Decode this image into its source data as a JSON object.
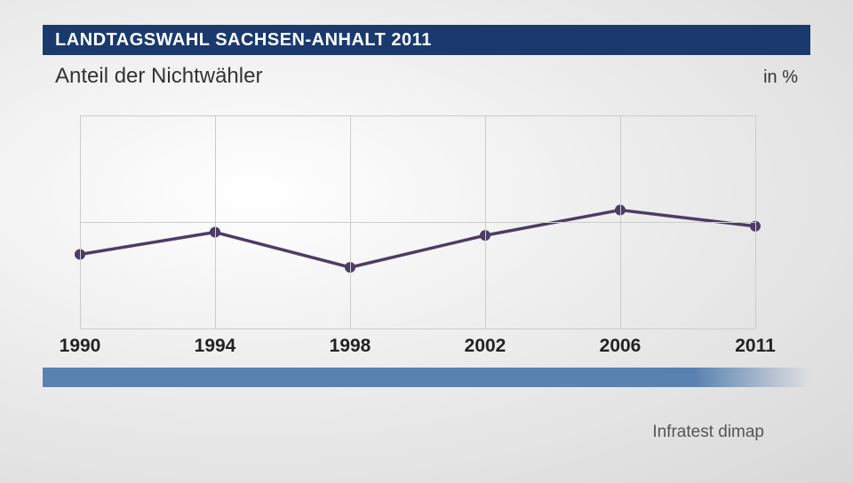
{
  "header": {
    "title": "LANDTAGSWAHL SACHSEN-ANHALT 2011",
    "bg_color": "#1a3a6e",
    "text_color": "#ffffff"
  },
  "subtitle": "Anteil der Nichtwähler",
  "unit": "in %",
  "chart": {
    "type": "line",
    "x_labels": [
      "1990",
      "1994",
      "1998",
      "2002",
      "2006",
      "2011"
    ],
    "y_values": [
      34.8,
      45.2,
      28.7,
      43.7,
      55.6,
      48.0
    ],
    "ymin": 0,
    "ymax": 100,
    "grid_y": [
      0,
      50,
      100
    ],
    "line_color": "#4d3c66",
    "line_width": 3.5,
    "marker_radius": 6,
    "marker_color": "#4d3c66",
    "grid_color": "#cccccc"
  },
  "bottom_bar_color": "#5a82b0",
  "source": "Infratest dimap"
}
